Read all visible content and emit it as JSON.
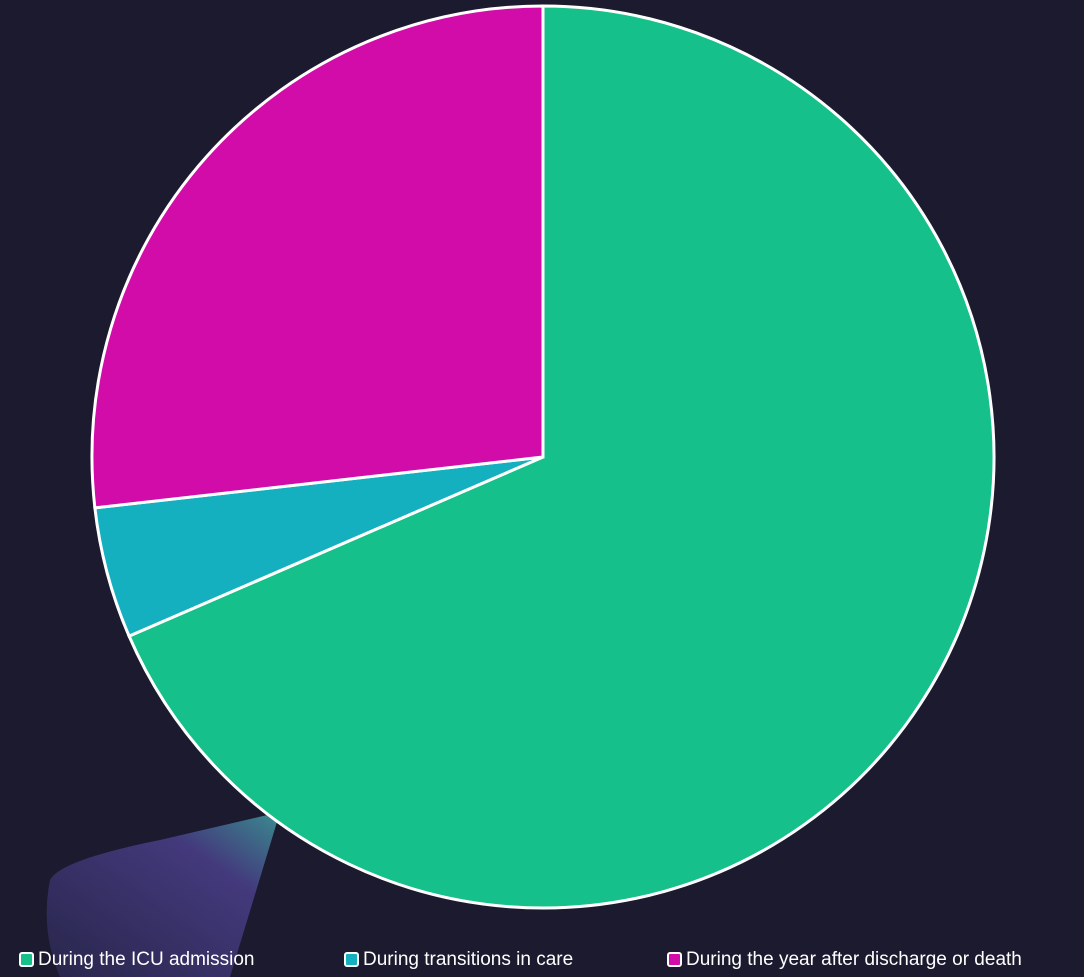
{
  "chart_data": {
    "type": "pie",
    "categories": [
      "During the ICU admission",
      "During transitions in care",
      "During the year after discharge or death"
    ],
    "values": [
      68.5,
      4.7,
      26.8
    ],
    "colors": [
      "#16c08a",
      "#14b0c0",
      "#d10ca8"
    ],
    "legend": "bottom"
  }
}
